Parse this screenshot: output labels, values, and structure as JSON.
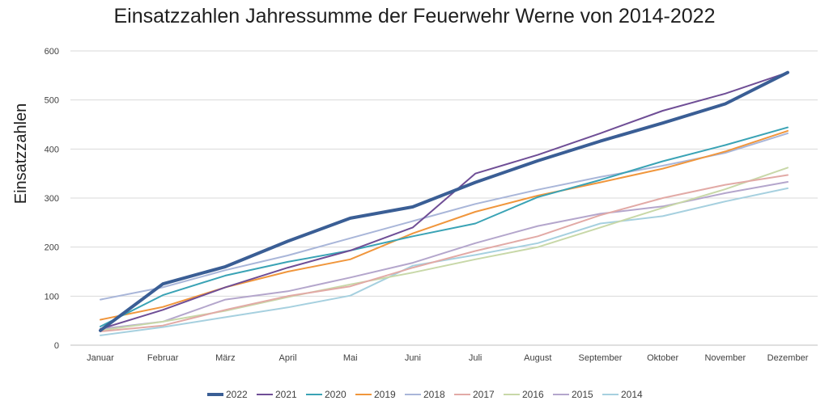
{
  "chart_data": {
    "type": "line",
    "title": "Einsatzzahlen Jahressumme der Feuerwehr Werne von 2014-2022",
    "ylabel": "Einsatzzahlen",
    "xlabel": "",
    "ylim": [
      0,
      600
    ],
    "yticks": [
      "0",
      "100",
      "200",
      "300",
      "400",
      "500",
      "600"
    ],
    "categories": [
      "Januar",
      "Februar",
      "März",
      "April",
      "Mai",
      "Juni",
      "Juli",
      "August",
      "September",
      "Oktober",
      "November",
      "Dezember"
    ],
    "grid": true,
    "legend_position": "bottom",
    "series": [
      {
        "name": "2022",
        "color": "#3a5e95",
        "values": [
          30,
          125,
          160,
          212,
          259,
          282,
          332,
          376,
          416,
          453,
          492,
          556
        ]
      },
      {
        "name": "2021",
        "color": "#6f4e96",
        "values": [
          33,
          72,
          118,
          158,
          193,
          240,
          350,
          388,
          432,
          478,
          513,
          556
        ]
      },
      {
        "name": "2020",
        "color": "#3aa3b5",
        "values": [
          38,
          102,
          142,
          170,
          193,
          222,
          248,
          302,
          337,
          375,
          408,
          444
        ]
      },
      {
        "name": "2019",
        "color": "#f0963c",
        "values": [
          52,
          78,
          118,
          150,
          175,
          228,
          272,
          305,
          332,
          360,
          395,
          437
        ]
      },
      {
        "name": "2018",
        "color": "#a9b6d9",
        "values": [
          93,
          118,
          153,
          183,
          218,
          253,
          288,
          317,
          343,
          366,
          392,
          432
        ]
      },
      {
        "name": "2017",
        "color": "#e2aaa6",
        "values": [
          28,
          40,
          72,
          100,
          120,
          158,
          192,
          222,
          265,
          300,
          327,
          347
        ]
      },
      {
        "name": "2016",
        "color": "#c8d8a8",
        "values": [
          30,
          48,
          70,
          98,
          124,
          148,
          175,
          200,
          240,
          280,
          318,
          362
        ]
      },
      {
        "name": "2015",
        "color": "#b4a6cc",
        "values": [
          33,
          48,
          93,
          110,
          138,
          168,
          208,
          243,
          268,
          283,
          310,
          333
        ]
      },
      {
        "name": "2014",
        "color": "#a6d0df",
        "values": [
          20,
          37,
          57,
          77,
          101,
          162,
          184,
          208,
          248,
          263,
          293,
          320
        ]
      }
    ]
  }
}
